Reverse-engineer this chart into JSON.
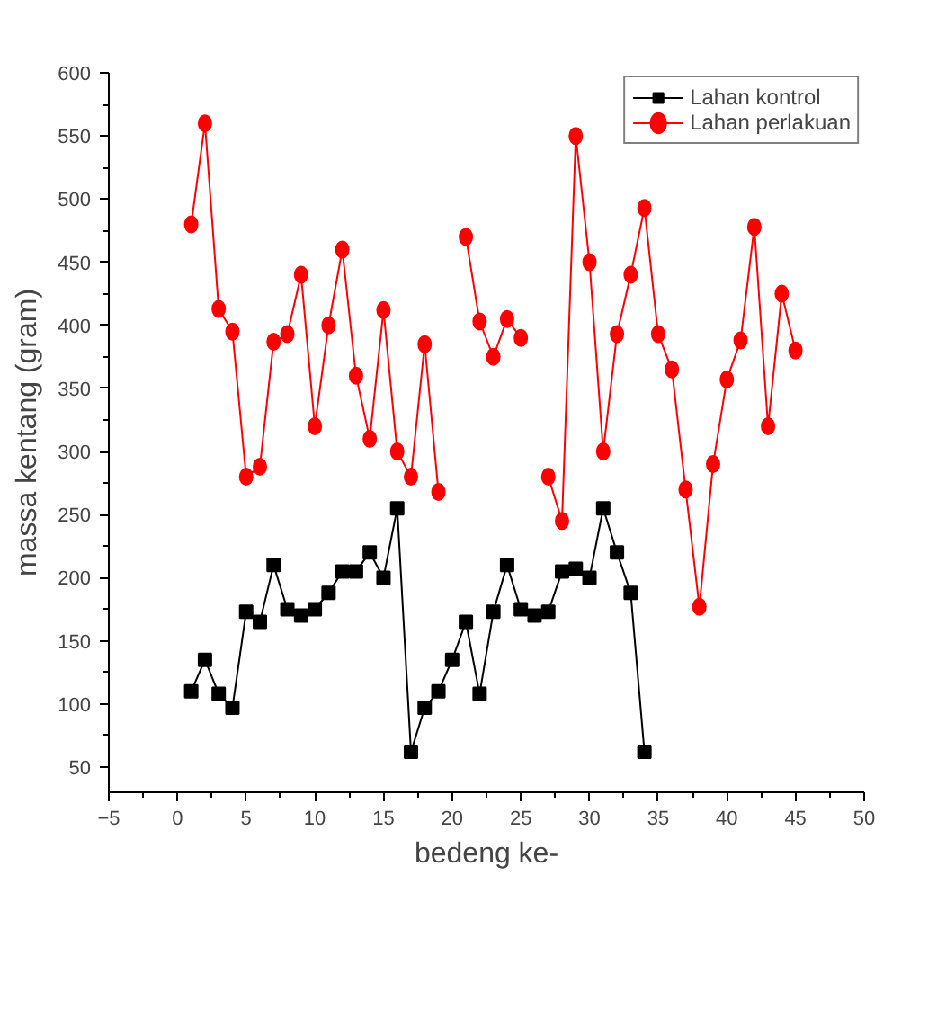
{
  "chart_data": {
    "type": "line",
    "xlabel": "bedeng ke-",
    "ylabel": "massa kentang (gram)",
    "x": [
      1,
      2,
      3,
      4,
      5,
      6,
      7,
      8,
      9,
      10,
      11,
      12,
      13,
      14,
      15,
      16,
      17,
      18,
      19,
      20,
      21,
      22,
      23,
      24,
      25,
      26,
      27,
      28,
      29,
      30,
      31,
      32,
      33,
      34,
      35,
      36,
      37,
      38,
      39,
      40,
      41,
      42,
      43,
      44,
      45
    ],
    "series": [
      {
        "name": "Lahan kontrol",
        "color": "#000000",
        "marker": "square",
        "values": [
          110,
          135,
          108,
          97,
          173,
          165,
          210,
          175,
          170,
          175,
          188,
          205,
          205,
          220,
          200,
          255,
          62,
          97,
          110,
          135,
          165,
          108,
          173,
          210,
          175,
          170,
          173,
          205,
          207,
          200,
          255,
          220,
          188,
          62,
          null,
          null,
          null,
          null,
          null,
          null,
          null,
          null,
          null,
          null,
          null
        ]
      },
      {
        "name": "Lahan perlakuan",
        "color": "#ff0000",
        "marker": "circle",
        "values": [
          480,
          560,
          413,
          395,
          280,
          288,
          387,
          393,
          440,
          320,
          400,
          460,
          360,
          310,
          412,
          300,
          280,
          385,
          268,
          null,
          470,
          403,
          375,
          405,
          390,
          null,
          280,
          245,
          550,
          450,
          300,
          393,
          440,
          493,
          393,
          365,
          270,
          177,
          290,
          357,
          388,
          478,
          320,
          425,
          380
        ]
      }
    ],
    "xlim": [
      -5,
      50
    ],
    "xticks": [
      -5,
      0,
      5,
      10,
      15,
      20,
      25,
      30,
      35,
      40,
      45,
      50
    ],
    "ylim": [
      30,
      600
    ],
    "yticks": [
      50,
      100,
      150,
      200,
      250,
      300,
      350,
      400,
      450,
      500,
      550,
      600
    ],
    "grid": false,
    "legend": "top right"
  }
}
